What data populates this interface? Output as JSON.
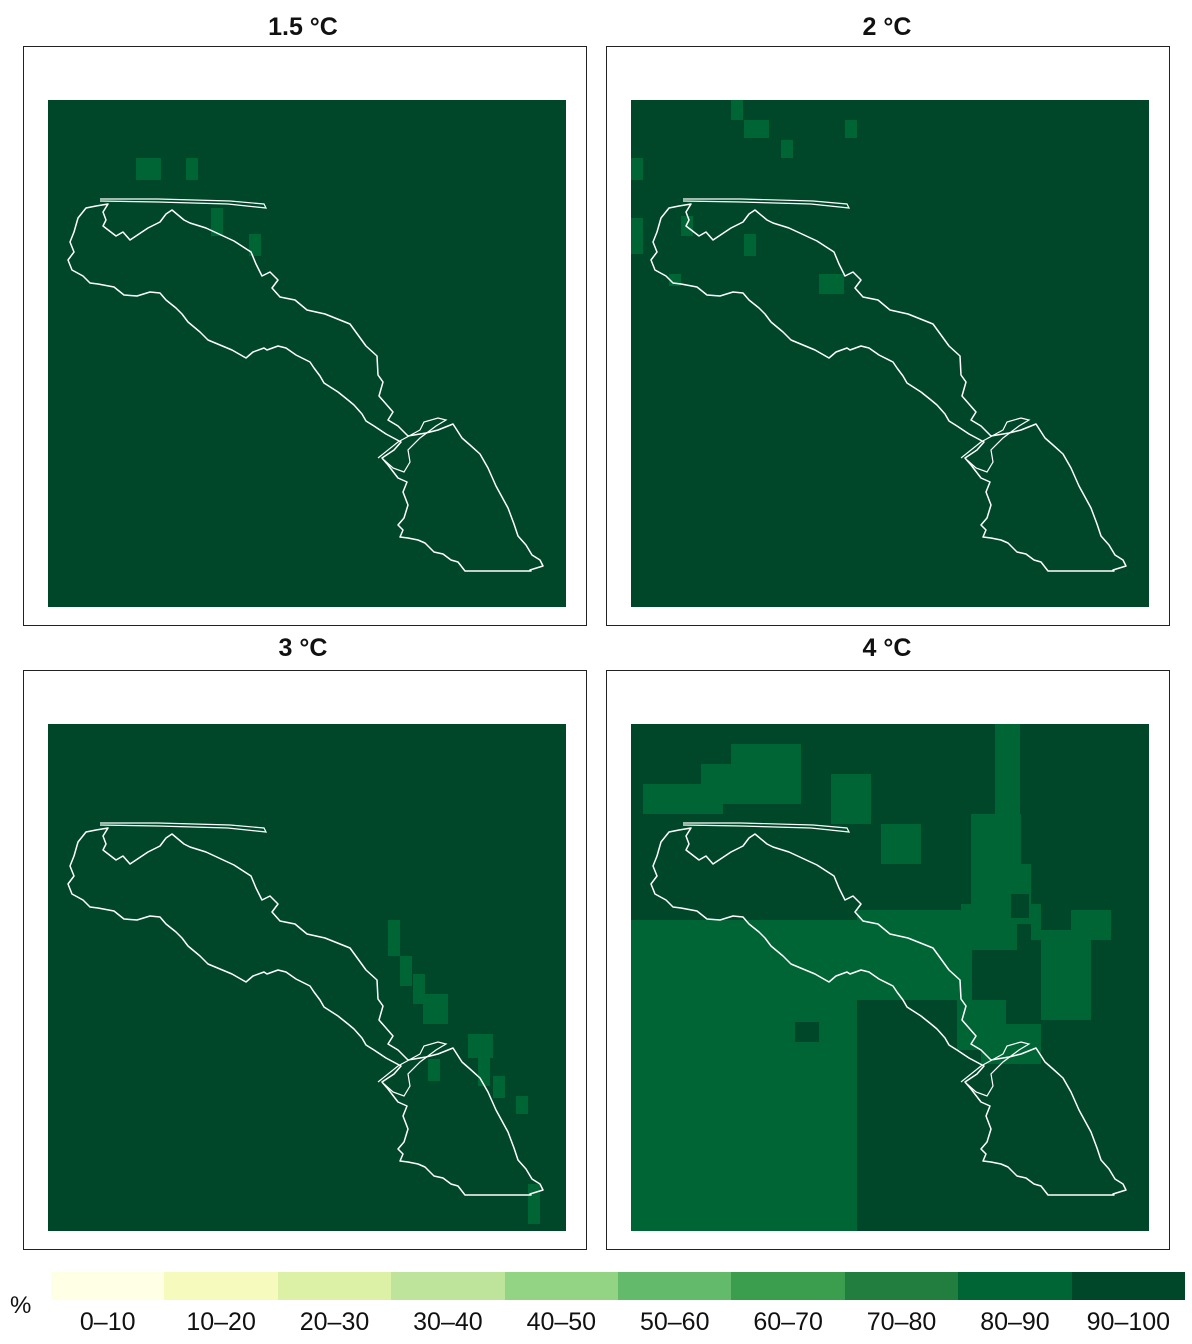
{
  "panels": [
    {
      "title": "1.5 °C"
    },
    {
      "title": "2 °C"
    },
    {
      "title": "3 °C"
    },
    {
      "title": "4 °C"
    }
  ],
  "legend": {
    "unit": "%",
    "bins": [
      {
        "label": "0–10",
        "color": "#ffffe6"
      },
      {
        "label": "10–20",
        "color": "#f6fbbd"
      },
      {
        "label": "20–30",
        "color": "#dcf0a6"
      },
      {
        "label": "30–40",
        "color": "#bde49a"
      },
      {
        "label": "40–50",
        "color": "#93d384"
      },
      {
        "label": "50–60",
        "color": "#63ba6a"
      },
      {
        "label": "60–70",
        "color": "#3b9e4f"
      },
      {
        "label": "70–80",
        "color": "#217e3f"
      },
      {
        "label": "80–90",
        "color": "#006535"
      },
      {
        "label": "90–100",
        "color": "#00472a"
      }
    ]
  },
  "colors": {
    "background_class": "90–100",
    "patch_class": "80–90",
    "boundary": "#ffffff"
  }
}
